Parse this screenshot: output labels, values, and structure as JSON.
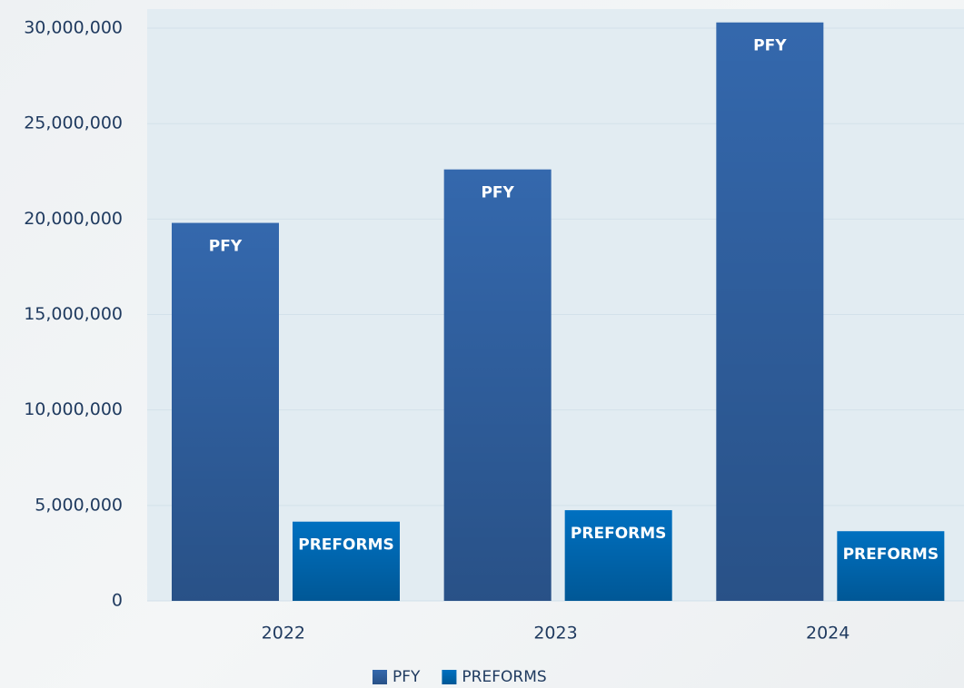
{
  "chart_data": {
    "type": "bar",
    "categories": [
      "2022",
      "2023",
      "2024"
    ],
    "series": [
      {
        "name": "PFY",
        "color": "#3468ad",
        "values": [
          19800000,
          22600000,
          30300000
        ]
      },
      {
        "name": "PREFORMS",
        "color": "#0070c0",
        "values": [
          4150000,
          4750000,
          3650000
        ]
      }
    ],
    "ylim": [
      0,
      31000000
    ],
    "yticks": [
      0,
      {
        "value": 5000000,
        "label": "5,000,000"
      },
      {
        "value": 10000000,
        "label": "10,000,000"
      },
      {
        "value": 15000000,
        "label": "15,000,000"
      },
      {
        "value": 20000000,
        "label": "20,000,000"
      },
      {
        "value": 25000000,
        "label": "25,000,000"
      },
      {
        "value": 30000000,
        "label": "30,000,000"
      }
    ],
    "grid": true,
    "legend": "bottom"
  }
}
